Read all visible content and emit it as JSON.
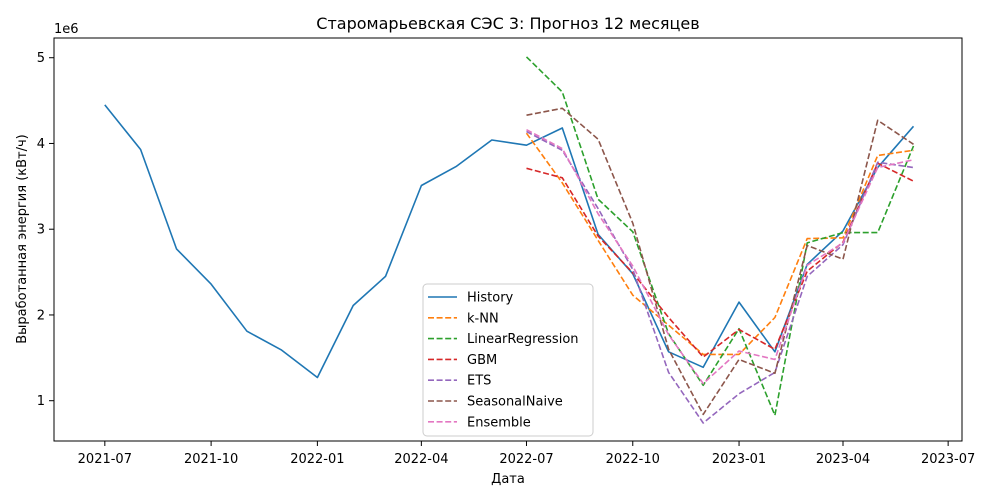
{
  "chart_data": {
    "type": "line",
    "title": "Старомарьевская СЭС 3: Прогноз 12 месяцев",
    "xlabel": "Дата",
    "ylabel": "Выработанная энергия (кВт/ч)",
    "y_offset_label": "1e6",
    "y_scale": 1000000,
    "x_range": [
      "2021-05-18",
      "2023-07-13"
    ],
    "ylim": [
      530000,
      5230000
    ],
    "x_ticks": [
      {
        "date": "2021-07-01",
        "label": "2021-07"
      },
      {
        "date": "2021-10-01",
        "label": "2021-10"
      },
      {
        "date": "2022-01-01",
        "label": "2022-01"
      },
      {
        "date": "2022-04-01",
        "label": "2022-04"
      },
      {
        "date": "2022-07-01",
        "label": "2022-07"
      },
      {
        "date": "2022-10-01",
        "label": "2022-10"
      },
      {
        "date": "2023-01-01",
        "label": "2023-01"
      },
      {
        "date": "2023-04-01",
        "label": "2023-04"
      },
      {
        "date": "2023-07-01",
        "label": "2023-07"
      }
    ],
    "y_ticks": [
      {
        "value": 1000000,
        "label": "1"
      },
      {
        "value": 2000000,
        "label": "2"
      },
      {
        "value": 3000000,
        "label": "3"
      },
      {
        "value": 4000000,
        "label": "4"
      },
      {
        "value": 5000000,
        "label": "5"
      }
    ],
    "legend_position": "lower-center",
    "series": [
      {
        "name": "History",
        "color": "#1f77b4",
        "dash": "solid",
        "x": [
          "2021-07-01",
          "2021-08-01",
          "2021-09-01",
          "2021-10-01",
          "2021-11-01",
          "2021-12-01",
          "2022-01-01",
          "2022-02-01",
          "2022-03-01",
          "2022-04-01",
          "2022-05-01",
          "2022-06-01",
          "2022-07-01",
          "2022-08-01",
          "2022-09-01",
          "2022-10-01",
          "2022-11-01",
          "2022-12-01",
          "2023-01-01",
          "2023-02-01",
          "2023-03-01",
          "2023-04-01",
          "2023-05-01",
          "2023-06-01"
        ],
        "values": [
          4450000,
          3930000,
          2770000,
          2360000,
          1810000,
          1590000,
          1270000,
          2110000,
          2450000,
          3510000,
          3730000,
          4040000,
          3980000,
          4180000,
          2940000,
          2480000,
          1570000,
          1390000,
          2150000,
          1570000,
          2590000,
          2980000,
          3720000,
          4200000
        ]
      },
      {
        "name": "k-NN",
        "color": "#ff7f0e",
        "dash": "dashed",
        "x": [
          "2022-07-01",
          "2022-08-01",
          "2022-09-01",
          "2022-10-01",
          "2022-11-01",
          "2022-12-01",
          "2023-01-01",
          "2023-02-01",
          "2023-03-01",
          "2023-04-01",
          "2023-05-01",
          "2023-06-01"
        ],
        "values": [
          4120000,
          3540000,
          2870000,
          2230000,
          1880000,
          1540000,
          1540000,
          1970000,
          2890000,
          2900000,
          3860000,
          3920000
        ]
      },
      {
        "name": "LinearRegression",
        "color": "#2ca02c",
        "dash": "dashed",
        "x": [
          "2022-07-01",
          "2022-08-01",
          "2022-09-01",
          "2022-10-01",
          "2022-11-01",
          "2022-12-01",
          "2023-01-01",
          "2023-02-01",
          "2023-03-01",
          "2023-04-01",
          "2023-05-01",
          "2023-06-01"
        ],
        "values": [
          5010000,
          4600000,
          3350000,
          2970000,
          1780000,
          1180000,
          1840000,
          830000,
          2840000,
          2960000,
          2960000,
          3970000
        ]
      },
      {
        "name": "GBM",
        "color": "#d62728",
        "dash": "dashed",
        "x": [
          "2022-07-01",
          "2022-08-01",
          "2022-09-01",
          "2022-10-01",
          "2022-11-01",
          "2022-12-01",
          "2023-01-01",
          "2023-02-01",
          "2023-03-01",
          "2023-04-01",
          "2023-05-01",
          "2023-06-01"
        ],
        "values": [
          3710000,
          3600000,
          2920000,
          2490000,
          1970000,
          1510000,
          1830000,
          1600000,
          2510000,
          2850000,
          3770000,
          3560000
        ]
      },
      {
        "name": "ETS",
        "color": "#9467bd",
        "dash": "dashed",
        "x": [
          "2022-07-01",
          "2022-08-01",
          "2022-09-01",
          "2022-10-01",
          "2022-11-01",
          "2022-12-01",
          "2023-01-01",
          "2023-02-01",
          "2023-03-01",
          "2023-04-01",
          "2023-05-01",
          "2023-06-01"
        ],
        "values": [
          4140000,
          3920000,
          3240000,
          2530000,
          1330000,
          740000,
          1080000,
          1330000,
          2450000,
          2820000,
          3780000,
          3720000
        ]
      },
      {
        "name": "SeasonalNaive",
        "color": "#8c564b",
        "dash": "dashed",
        "x": [
          "2022-07-01",
          "2022-08-01",
          "2022-09-01",
          "2022-10-01",
          "2022-11-01",
          "2022-12-01",
          "2023-01-01",
          "2023-02-01",
          "2023-03-01",
          "2023-04-01",
          "2023-05-01",
          "2023-06-01"
        ],
        "values": [
          4330000,
          4410000,
          4050000,
          3070000,
          1600000,
          840000,
          1480000,
          1320000,
          2810000,
          2650000,
          4270000,
          3990000
        ]
      },
      {
        "name": "Ensemble",
        "color": "#e377c2",
        "dash": "dashed",
        "x": [
          "2022-07-01",
          "2022-08-01",
          "2022-09-01",
          "2022-10-01",
          "2022-11-01",
          "2022-12-01",
          "2023-01-01",
          "2023-02-01",
          "2023-03-01",
          "2023-04-01",
          "2023-05-01",
          "2023-06-01"
        ],
        "values": [
          4160000,
          3940000,
          3180000,
          2570000,
          1770000,
          1200000,
          1580000,
          1480000,
          2580000,
          2840000,
          3720000,
          3810000
        ]
      }
    ]
  }
}
